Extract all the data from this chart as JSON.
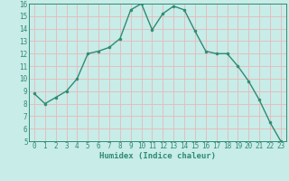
{
  "x": [
    0,
    1,
    2,
    3,
    4,
    5,
    6,
    7,
    8,
    9,
    10,
    11,
    12,
    13,
    14,
    15,
    16,
    17,
    18,
    19,
    20,
    21,
    22,
    23
  ],
  "y": [
    8.8,
    8.0,
    8.5,
    9.0,
    10.0,
    12.0,
    12.2,
    12.5,
    13.2,
    15.5,
    16.0,
    13.9,
    15.2,
    15.8,
    15.5,
    13.8,
    12.2,
    12.0,
    12.0,
    11.0,
    9.8,
    8.3,
    6.5,
    5.0
  ],
  "line_color": "#2e8b74",
  "marker_color": "#2e8b74",
  "bg_color": "#c8ece8",
  "grid_color": "#e8b8b8",
  "xlabel": "Humidex (Indice chaleur)",
  "xlim": [
    -0.5,
    23.5
  ],
  "ylim": [
    5,
    16
  ],
  "yticks": [
    5,
    6,
    7,
    8,
    9,
    10,
    11,
    12,
    13,
    14,
    15,
    16
  ],
  "xticks": [
    0,
    1,
    2,
    3,
    4,
    5,
    6,
    7,
    8,
    9,
    10,
    11,
    12,
    13,
    14,
    15,
    16,
    17,
    18,
    19,
    20,
    21,
    22,
    23
  ],
  "tick_color": "#2e8b74",
  "label_fontsize": 6.5,
  "tick_fontsize": 5.5
}
